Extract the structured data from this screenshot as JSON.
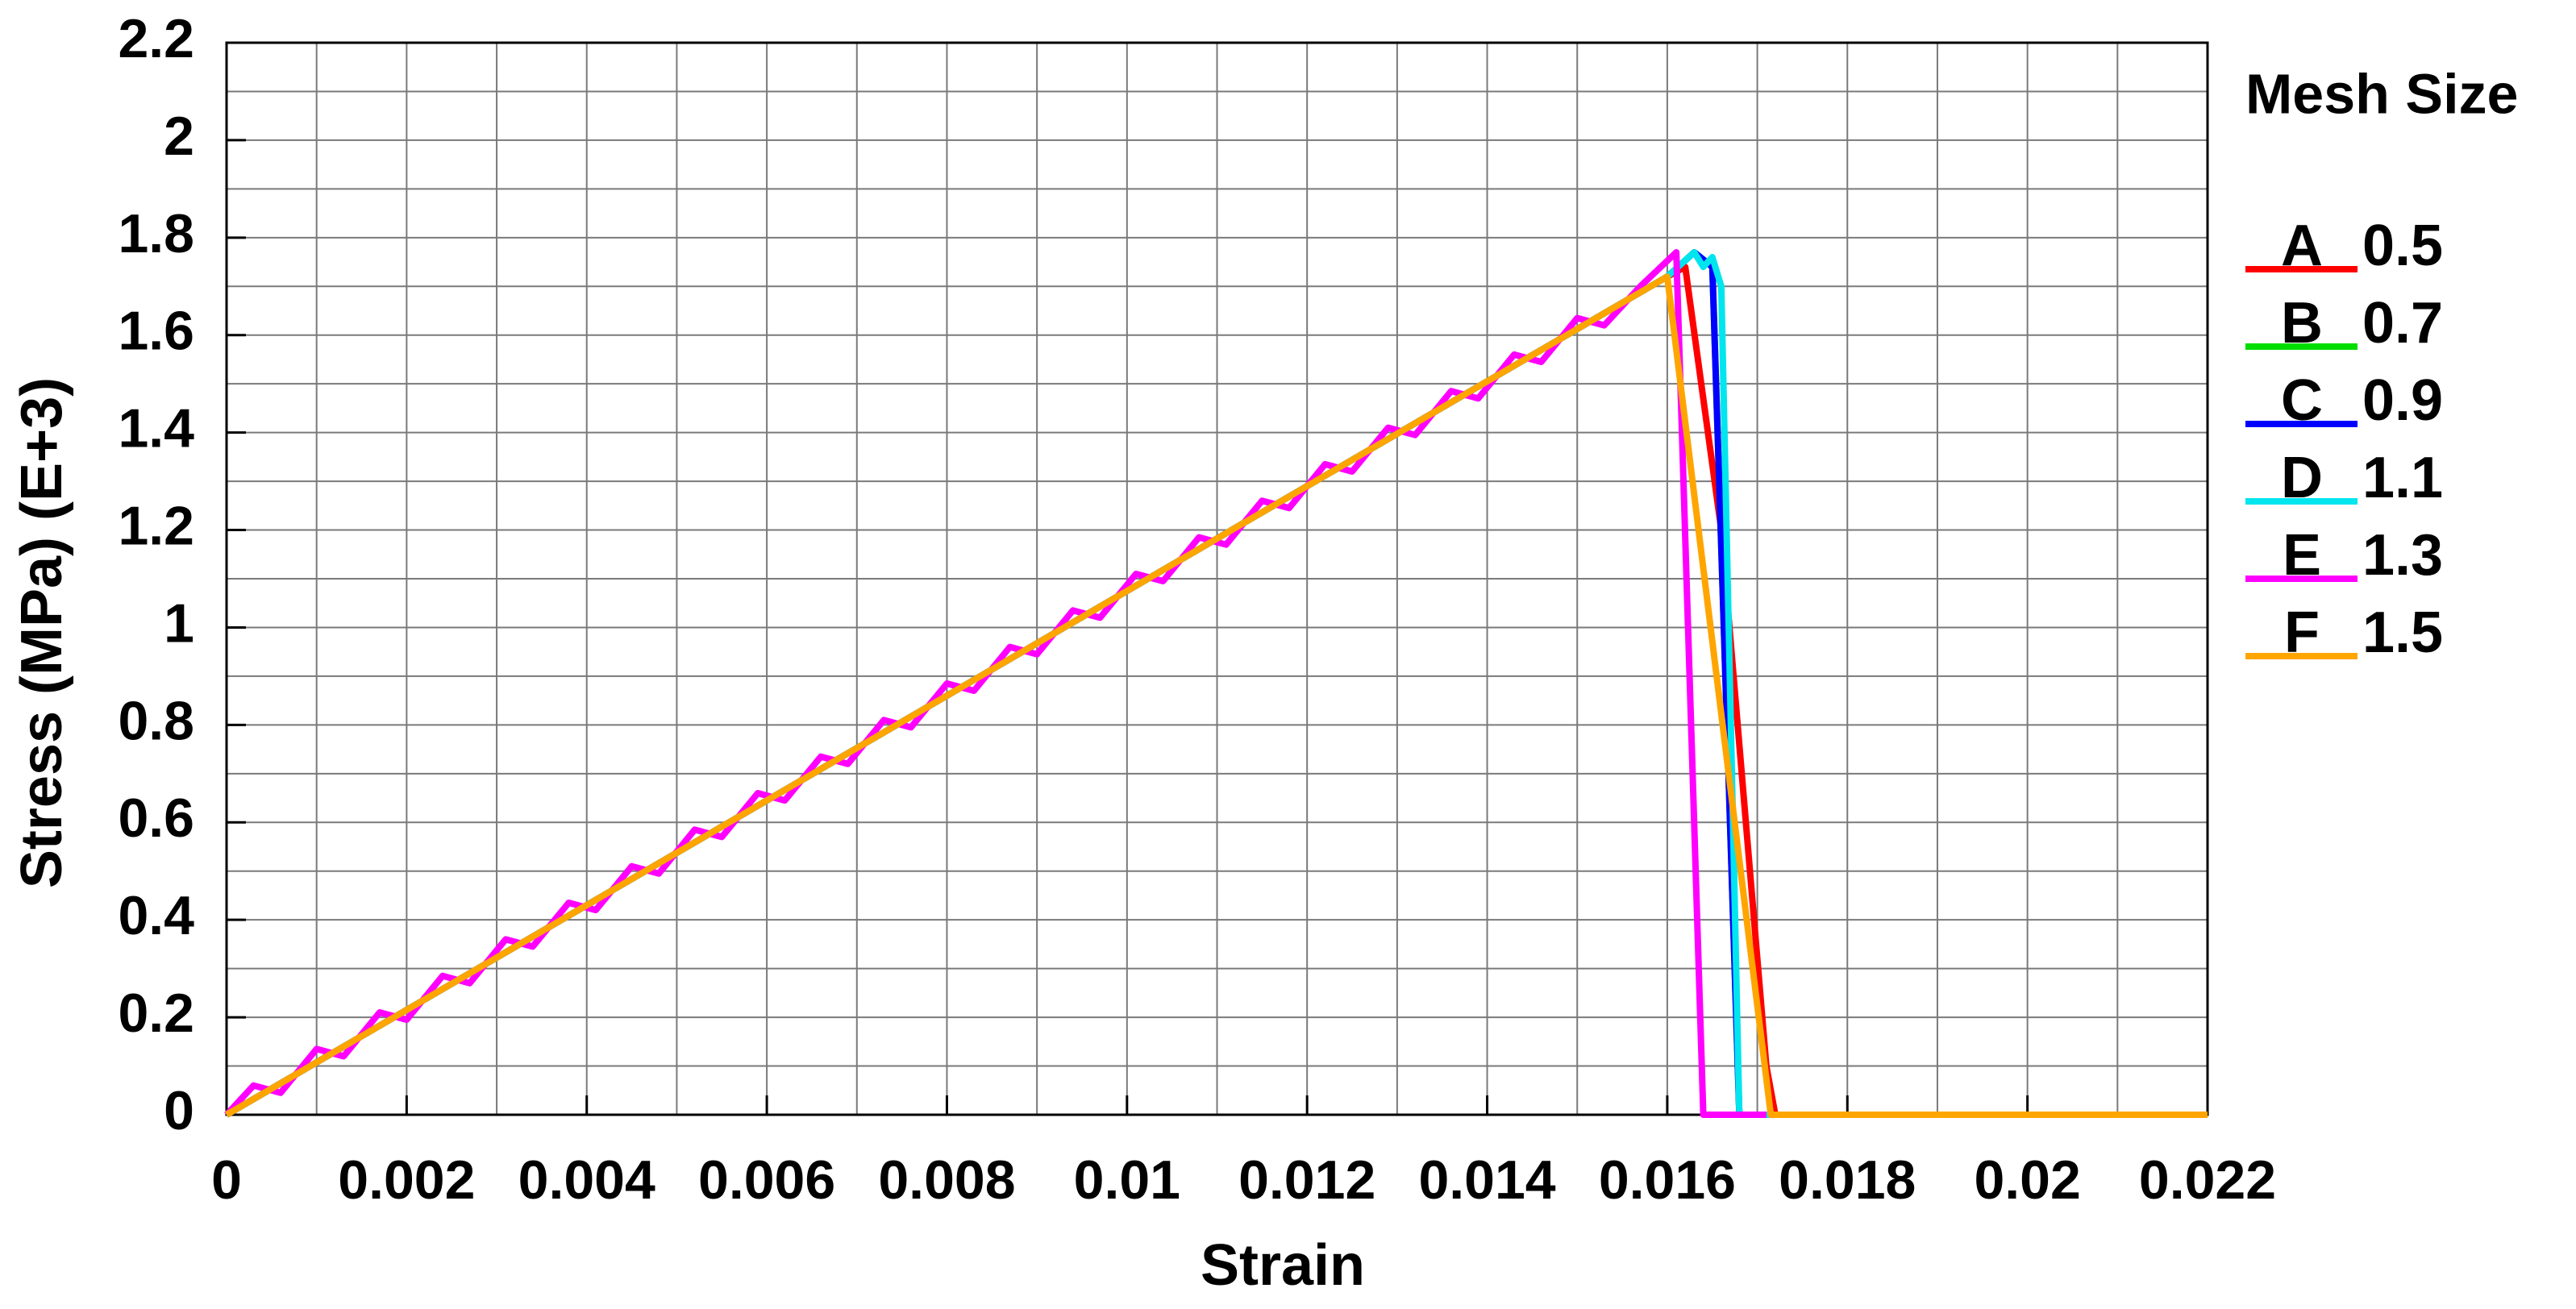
{
  "chart_data": {
    "type": "line",
    "x_label": "Strain",
    "y_label": "Stress (MPa) (E+3)",
    "legend_title": "Mesh Size",
    "xlim": [
      0,
      0.022
    ],
    "ylim": [
      0,
      2.2
    ],
    "xticks": [
      0,
      0.002,
      0.004,
      0.006,
      0.008,
      0.01,
      0.012,
      0.014,
      0.016,
      0.018,
      0.02,
      0.022
    ],
    "yticks": [
      0,
      0.2,
      0.4,
      0.6,
      0.8,
      1,
      1.2,
      1.4,
      1.6,
      1.8,
      2,
      2.2
    ],
    "x_grid": [
      0.001,
      0.002,
      0.003,
      0.004,
      0.005,
      0.006,
      0.007,
      0.008,
      0.009,
      0.01,
      0.011,
      0.012,
      0.013,
      0.014,
      0.015,
      0.016,
      0.017,
      0.018,
      0.019,
      0.02,
      0.021
    ],
    "y_grid": [
      0.1,
      0.2,
      0.3,
      0.4,
      0.5,
      0.6,
      0.7,
      0.8,
      0.9,
      1,
      1.1,
      1.2,
      1.3,
      1.4,
      1.5,
      1.6,
      1.7,
      1.8,
      1.9,
      2,
      2.1
    ],
    "grid": true,
    "series": [
      {
        "letter": "A",
        "name": "0.5",
        "color": "#ff0000",
        "x": [
          0,
          0.004,
          0.008,
          0.012,
          0.016,
          0.0162,
          0.0166,
          0.0171,
          0.0172,
          0.022
        ],
        "values": [
          0,
          0.43,
          0.86,
          1.29,
          1.72,
          1.74,
          1.2,
          0.1,
          0,
          0
        ]
      },
      {
        "letter": "B",
        "name": "0.7",
        "color": "#00dd00",
        "x": [
          0,
          0.004,
          0.008,
          0.012,
          0.016,
          0.0163,
          0.0165,
          0.0168,
          0.022
        ],
        "values": [
          0,
          0.43,
          0.86,
          1.29,
          1.72,
          1.77,
          1.74,
          0,
          0
        ]
      },
      {
        "letter": "C",
        "name": "0.9",
        "color": "#0000ff",
        "x": [
          0,
          0.004,
          0.008,
          0.012,
          0.016,
          0.0163,
          0.0165,
          0.0168,
          0.022
        ],
        "values": [
          0,
          0.43,
          0.86,
          1.29,
          1.72,
          1.77,
          1.74,
          0,
          0
        ]
      },
      {
        "letter": "D",
        "name": "1.1",
        "color": "#00e5ee",
        "x": [
          0,
          0.004,
          0.008,
          0.012,
          0.016,
          0.0163,
          0.0164,
          0.0165,
          0.0166,
          0.0168,
          0.022
        ],
        "values": [
          0,
          0.43,
          0.86,
          1.29,
          1.72,
          1.77,
          1.74,
          1.76,
          1.7,
          0,
          0
        ]
      },
      {
        "letter": "E",
        "name": "1.3",
        "color": "#ff00ff",
        "x": [
          0,
          0.0003,
          0.0006,
          0.001,
          0.0013,
          0.0017,
          0.002,
          0.0024,
          0.0027,
          0.0031,
          0.0034,
          0.0038,
          0.0041,
          0.0045,
          0.0048,
          0.0052,
          0.0055,
          0.0059,
          0.0062,
          0.0066,
          0.0069,
          0.0073,
          0.0076,
          0.008,
          0.0083,
          0.0087,
          0.009,
          0.0094,
          0.0097,
          0.0101,
          0.0104,
          0.0108,
          0.0111,
          0.0115,
          0.0118,
          0.0122,
          0.0125,
          0.0129,
          0.0132,
          0.0136,
          0.0139,
          0.0143,
          0.0146,
          0.015,
          0.0153,
          0.0157,
          0.0161,
          0.0164,
          0.0171
        ],
        "values": [
          0,
          0.06,
          0.045,
          0.135,
          0.12,
          0.21,
          0.195,
          0.285,
          0.27,
          0.36,
          0.345,
          0.435,
          0.42,
          0.51,
          0.495,
          0.585,
          0.57,
          0.66,
          0.645,
          0.735,
          0.72,
          0.81,
          0.795,
          0.885,
          0.87,
          0.96,
          0.945,
          1.035,
          1.02,
          1.11,
          1.095,
          1.185,
          1.17,
          1.26,
          1.245,
          1.335,
          1.32,
          1.41,
          1.395,
          1.485,
          1.47,
          1.56,
          1.545,
          1.635,
          1.62,
          1.7,
          1.77,
          0,
          0
        ]
      },
      {
        "letter": "F",
        "name": "1.5",
        "color": "#ffa500",
        "x": [
          0,
          0.004,
          0.008,
          0.012,
          0.016,
          0.01715,
          0.022
        ],
        "values": [
          0,
          0.43,
          0.86,
          1.29,
          1.72,
          0,
          0
        ]
      }
    ]
  }
}
